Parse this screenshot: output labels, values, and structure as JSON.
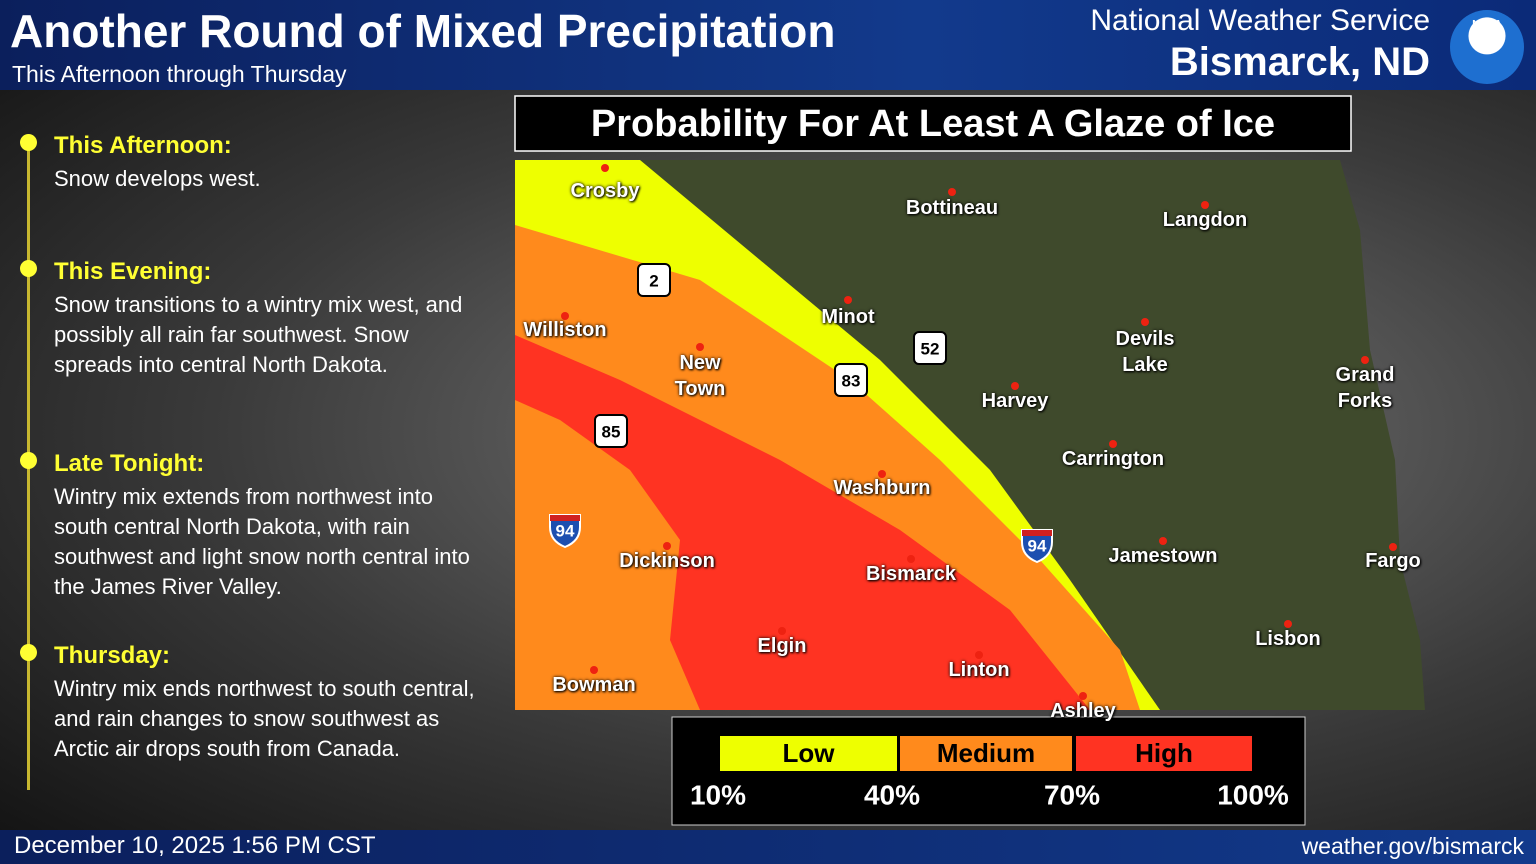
{
  "header": {
    "title": "Another Round of Mixed Precipitation",
    "subtitle": "This Afternoon through Thursday",
    "office": "National Weather Service",
    "city": "Bismarck, ND",
    "logo": "NOAA"
  },
  "timeline": [
    {
      "heading": "This Afternoon:",
      "text": "Snow develops west."
    },
    {
      "heading": "This Evening:",
      "text": "Snow transitions to a wintry mix west, and possibly all rain far southwest. Snow spreads into central North Dakota."
    },
    {
      "heading": "Late Tonight:",
      "text": "Wintry mix extends from northwest into south central North Dakota, with rain southwest and light snow north central into the James River Valley."
    },
    {
      "heading": "Thursday:",
      "text": "Wintry mix ends northwest to south central, and rain changes to snow southwest as Arctic air drops south from Canada."
    }
  ],
  "map": {
    "title": "Probability For At Least A Glaze of Ice",
    "cities": [
      "Crosby",
      "Bottineau",
      "Langdon",
      "Minot",
      "Williston",
      "New Town",
      "Devils Lake",
      "Grand Forks",
      "Harvey",
      "Carrington",
      "Washburn",
      "Jamestown",
      "Fargo",
      "Dickinson",
      "Bismarck",
      "Lisbon",
      "Elgin",
      "Linton",
      "Bowman",
      "Ashley"
    ],
    "shields": [
      "2",
      "83",
      "52",
      "85",
      "94",
      "94"
    ]
  },
  "legend": {
    "categories": [
      "Low",
      "Medium",
      "High"
    ],
    "ticks": [
      "10%",
      "40%",
      "70%",
      "100%"
    ]
  },
  "footer": {
    "date": "December 10, 2025 1:56 PM CST",
    "url": "weather.gov/bismarck"
  }
}
